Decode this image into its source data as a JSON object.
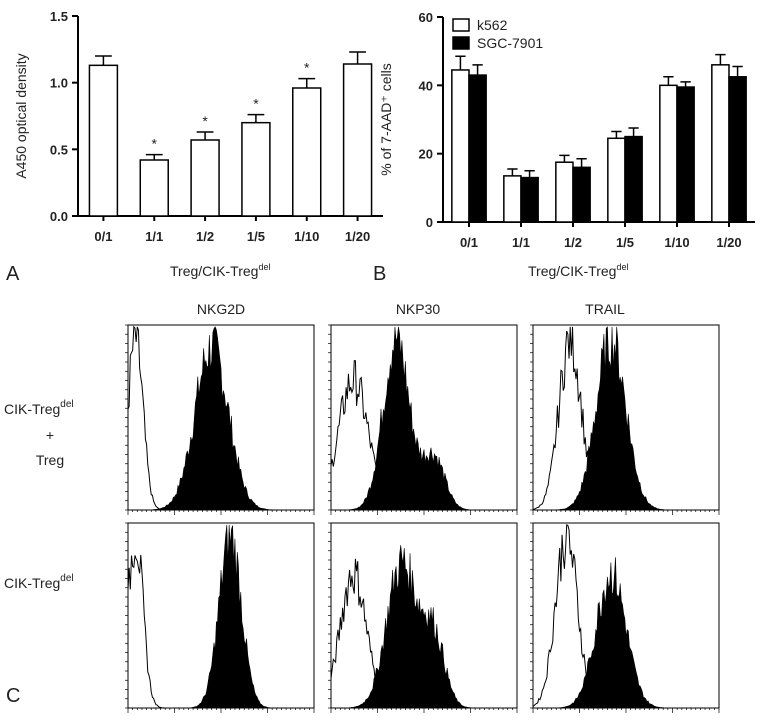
{
  "chart_data": [
    {
      "type": "bar",
      "y_label": "A450 optical density",
      "categories": [
        "0/1",
        "1/1",
        "1/2",
        "1/5",
        "1/10",
        "1/20"
      ],
      "values": [
        1.13,
        0.42,
        0.57,
        0.7,
        0.96,
        1.14
      ],
      "errors": [
        0.07,
        0.04,
        0.06,
        0.06,
        0.07,
        0.09
      ],
      "significance": [
        null,
        "*",
        "*",
        "*",
        "*",
        null
      ],
      "color": "#ffffff",
      "ylim": [
        0,
        1.5
      ],
      "yticks": [
        {
          "value": 0,
          "label": "0.0"
        },
        {
          "value": 0.5,
          "label": "0.5"
        },
        {
          "value": 1,
          "label": "1.0"
        },
        {
          "value": 1.5,
          "label": "1.5"
        }
      ]
    },
    {
      "type": "bar",
      "y_label": "% of 7-AAD⁺ cells",
      "categories": [
        "0/1",
        "1/1",
        "1/2",
        "1/5",
        "1/10",
        "1/20"
      ],
      "series": [
        {
          "name": "k562",
          "color": "#ffffff",
          "values": [
            44.5,
            13.5,
            17.5,
            24.5,
            40,
            46
          ],
          "errors": [
            4,
            2,
            2,
            2,
            2.5,
            3
          ]
        },
        {
          "name": "SGC-7901",
          "color": "#000000",
          "values": [
            43,
            13,
            16,
            25,
            39.5,
            42.5
          ],
          "errors": [
            3,
            2,
            2.5,
            2.5,
            1.5,
            3
          ]
        }
      ],
      "legend": "top-left",
      "ylim": [
        0,
        60
      ],
      "yticks": [
        0,
        20,
        40,
        60
      ]
    }
  ],
  "panels": {
    "a": "A",
    "b": "B",
    "c": "C"
  },
  "header": {
    "base": "Treg/CIK-Treg",
    "sup": "del"
  },
  "markers": [
    "NKG2D",
    "NKP30",
    "TRAIL"
  ],
  "rows": [
    {
      "base": "CIK-Treg",
      "sup": "del",
      "line2": "+",
      "line3": "Treg"
    },
    {
      "base": "CIK-Treg",
      "sup": "del"
    }
  ]
}
